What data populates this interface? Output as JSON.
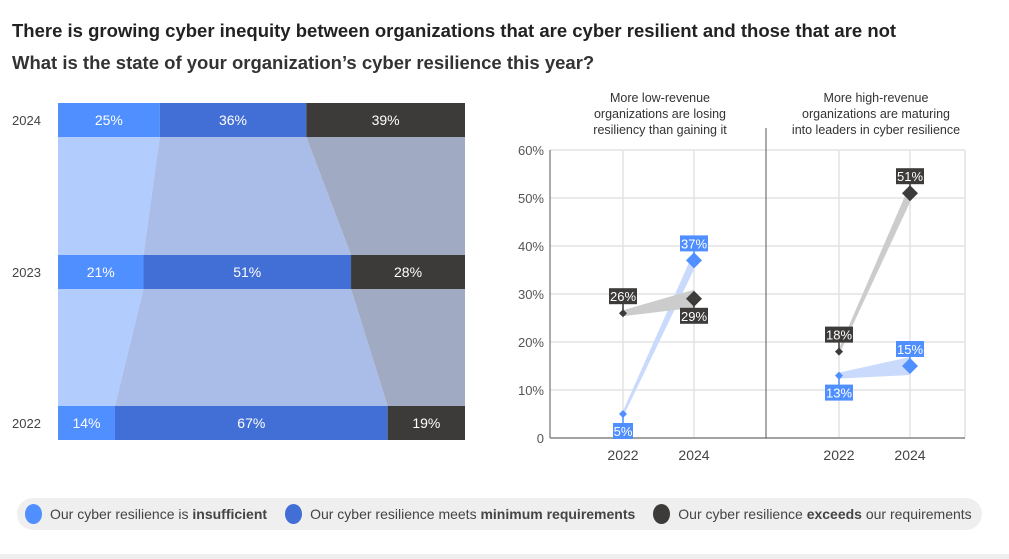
{
  "title": "There is growing cyber inequity between organizations that are cyber resilient and those that are not",
  "subtitle": "What is the state of your organization’s cyber resilience this year?",
  "colors": {
    "insufficient": "#4f8fff",
    "minimum": "#416fd6",
    "exceeds": "#3d3b39",
    "band_insufficient": "#b2cdfd",
    "band_minimum": "#aabde9",
    "band_exceeds": "#a0aac2",
    "line_band_blue": "#c9dafc",
    "line_band_gray": "#cccccc"
  },
  "chart_data": [
    {
      "type": "bar",
      "orientation": "horizontal-stacked-100",
      "categories": [
        "2024",
        "2023",
        "2022"
      ],
      "series": [
        {
          "name": "Our cyber resilience is insufficient",
          "values": [
            25,
            21,
            14
          ],
          "labels": [
            "25%",
            "21%",
            "14%"
          ]
        },
        {
          "name": "Our cyber resilience meets minimum requirements",
          "values": [
            36,
            51,
            67
          ],
          "labels": [
            "36%",
            "51%",
            "67%"
          ]
        },
        {
          "name": "Our cyber resilience exceeds our requirements",
          "values": [
            39,
            28,
            19
          ],
          "labels": [
            "39%",
            "28%",
            "19%"
          ]
        }
      ]
    },
    {
      "type": "line",
      "ylim": [
        0,
        60
      ],
      "yticks": [
        "0",
        "10%",
        "20%",
        "30%",
        "40%",
        "50%",
        "60%"
      ],
      "grid": true,
      "panels": [
        {
          "title": "More low-revenue organizations are losing resiliency than gaining it",
          "title_lines": [
            "More low-revenue",
            "organizations are losing",
            "resiliency than gaining it"
          ],
          "x": [
            "2022",
            "2024"
          ],
          "series": [
            {
              "name": "Our cyber resilience is insufficient",
              "values": [
                5,
                37
              ],
              "labels": [
                "5%",
                "37%"
              ]
            },
            {
              "name": "Our cyber resilience exceeds our requirements",
              "values": [
                26,
                29
              ],
              "labels": [
                "26%",
                "29%"
              ]
            }
          ]
        },
        {
          "title": "More high-revenue organizations are maturing into leaders in cyber resilience",
          "title_lines": [
            "More high-revenue",
            "organizations are maturing",
            "into leaders in cyber resilience"
          ],
          "x": [
            "2022",
            "2024"
          ],
          "series": [
            {
              "name": "Our cyber resilience is insufficient",
              "values": [
                13,
                15
              ],
              "labels": [
                "13%",
                "15%"
              ]
            },
            {
              "name": "Our cyber resilience exceeds our requirements",
              "values": [
                18,
                51
              ],
              "labels": [
                "18%",
                "51%"
              ]
            }
          ]
        }
      ]
    }
  ],
  "legend": [
    {
      "pre": "Our cyber resilience is ",
      "bold": "insufficient",
      "post": ""
    },
    {
      "pre": "Our cyber resilience meets ",
      "bold": "minimum requirements",
      "post": ""
    },
    {
      "pre": "Our cyber resilience ",
      "bold": "exceeds",
      "post": " our requirements"
    }
  ]
}
